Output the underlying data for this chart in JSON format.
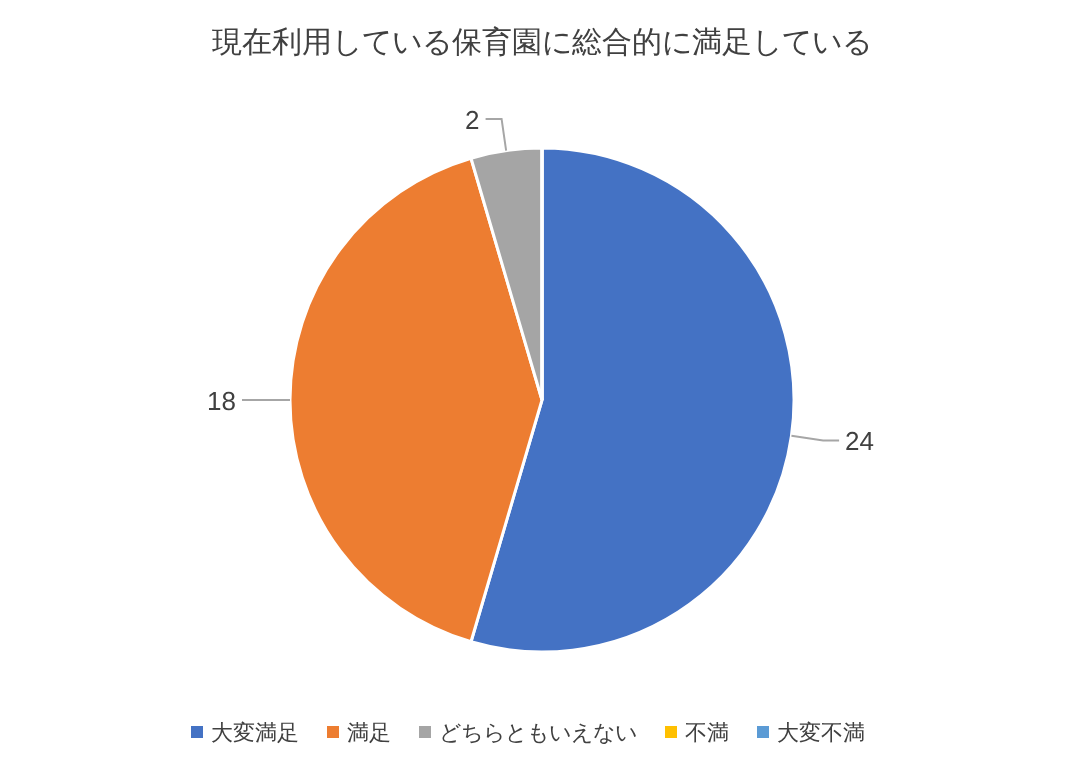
{
  "chart_data": {
    "type": "pie",
    "title": "現在利用している保育園に総合的に満足している",
    "categories": [
      "大変満足",
      "満足",
      "どちらともいえない",
      "不満",
      "大変不満"
    ],
    "values": [
      24,
      18,
      2,
      0,
      0
    ],
    "colors": [
      "#4472c4",
      "#ed7d31",
      "#a5a5a5",
      "#ffc000",
      "#5b9bd5"
    ],
    "value_labels": [
      "24",
      "18",
      "2",
      null,
      null
    ],
    "legend": "bottom"
  }
}
